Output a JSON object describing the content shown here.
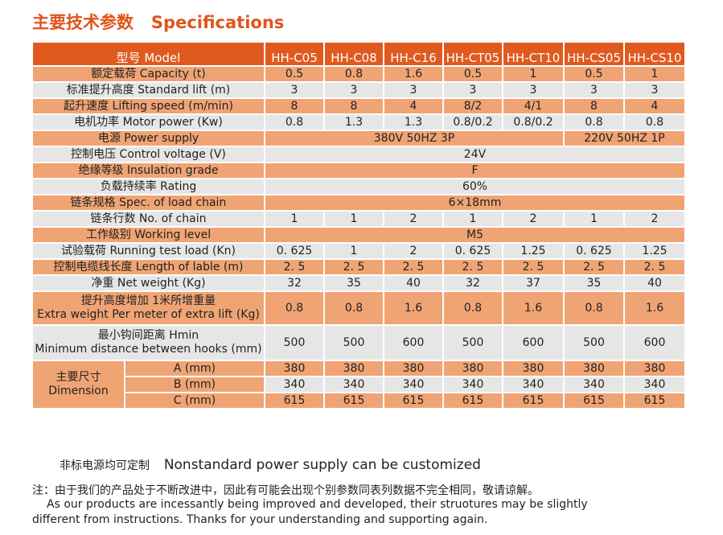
{
  "title": "主要技术参数   Specifications",
  "header": {
    "label": "型号  Model",
    "models": [
      "HH-C05",
      "HH-C08",
      "HH-C16",
      "HH-CT05",
      "HH-CT10",
      "HH-CS05",
      "HH-CS10"
    ]
  },
  "rows": [
    {
      "label": "额定载荷  Capacity (t)",
      "values": [
        "0.5",
        "0.8",
        "1.6",
        "0.5",
        "1",
        "0.5",
        "1"
      ]
    },
    {
      "label": "标准提升高度  Standard  lift (m)",
      "values": [
        "3",
        "3",
        "3",
        "3",
        "3",
        "3",
        "3"
      ]
    },
    {
      "label": "起升速度  Lifting speed (m/min)",
      "values": [
        "8",
        "8",
        "4",
        "8/2",
        "4/1",
        "8",
        "4"
      ]
    },
    {
      "label": "电机功率  Motor power (Kw)",
      "values": [
        "0.8",
        "1.3",
        "1.3",
        "0.8/0.2",
        "0.8/0.2",
        "0.8",
        "0.8"
      ]
    }
  ],
  "power_supply": {
    "label": "电源  Power supply",
    "three_phase": "380V 50HZ 3P",
    "single_phase": "220V 50HZ 1P"
  },
  "control_voltage": {
    "label": "控制电压 Control voltage (V)",
    "value": "24V"
  },
  "insulation": {
    "label": "绝缘等级  Insulation grade",
    "value": "F"
  },
  "rating": {
    "label": "负载持续率  Rating",
    "value": "60%"
  },
  "chain_spec": {
    "label": "链条规格  Spec. of load chain",
    "value": "6×18mm"
  },
  "chain_no": {
    "label": "链条行数  No. of chain",
    "values": [
      "1",
      "1",
      "2",
      "1",
      "2",
      "1",
      "2"
    ]
  },
  "working_level": {
    "label": "工作级别 Working level",
    "value": "M5"
  },
  "rows2": [
    {
      "label": "试验载荷  Running test load (Kn)",
      "values": [
        "0. 625",
        "1",
        "2",
        "0. 625",
        "1.25",
        "0. 625",
        "1.25"
      ]
    },
    {
      "label": "控制电缆线长度  Length of lable (m)",
      "values": [
        "2. 5",
        "2. 5",
        "2. 5",
        "2. 5",
        "2. 5",
        "2. 5",
        "2. 5"
      ]
    },
    {
      "label": "净重  Net weight (Kg)",
      "values": [
        "32",
        "35",
        "40",
        "32",
        "37",
        "35",
        "40"
      ]
    }
  ],
  "extra_weight": {
    "label_cn": "提升高度增加  1米所增重量",
    "label_en": "Extra weight Per meter of extra lift (Kg)",
    "values": [
      "0.8",
      "0.8",
      "1.6",
      "0.8",
      "1.6",
      "0.8",
      "1.6"
    ]
  },
  "hmin": {
    "label_cn": "最小钩间距离   Hmin",
    "label_en": "Minimum distance between hooks (mm)",
    "values": [
      "500",
      "500",
      "600",
      "500",
      "600",
      "500",
      "600"
    ]
  },
  "dimension": {
    "label_cn": "主要尺寸",
    "label_en": "Dimension",
    "rows": [
      {
        "label": "A (mm)",
        "values": [
          "380",
          "380",
          "380",
          "380",
          "380",
          "380",
          "380"
        ]
      },
      {
        "label": "B (mm)",
        "values": [
          "340",
          "340",
          "340",
          "340",
          "340",
          "340",
          "340"
        ]
      },
      {
        "label": "C (mm)",
        "values": [
          "615",
          "615",
          "615",
          "615",
          "615",
          "615",
          "615"
        ]
      }
    ]
  },
  "notes": {
    "custom_cn": "非标电源均可定制",
    "custom_en": "Nonstandard power supply can be customized",
    "note_cn": "注：由于我们的产品处于不断改进中，因此有可能会出现个别参数同表列数据不完全相同，敬请谅解。",
    "note_en1": "As our products are incessantly being improved and developed, their struotures may be slightly",
    "note_en2": "different from instructions. Thanks for your understanding and supporting again."
  }
}
